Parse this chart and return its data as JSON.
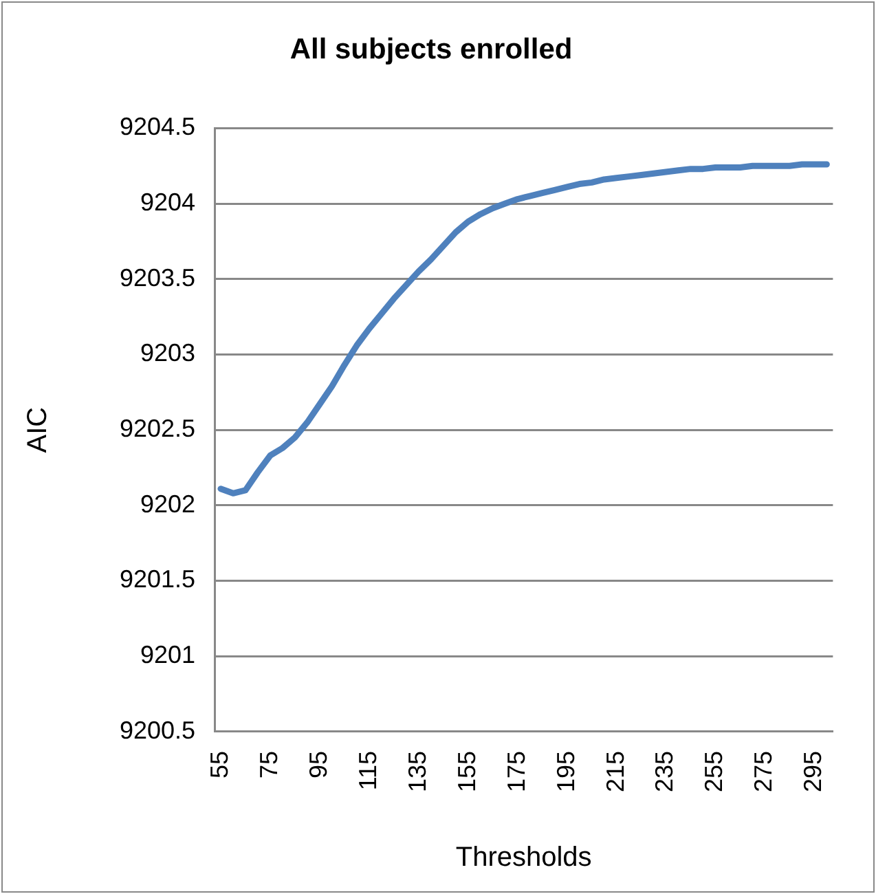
{
  "chart_data": {
    "type": "line",
    "title": "All subjects enrolled",
    "xlabel": "Thresholds",
    "ylabel": "AIC",
    "categories": [
      "55",
      null,
      null,
      null,
      "75",
      null,
      null,
      null,
      "95",
      null,
      null,
      null,
      "115",
      null,
      null,
      null,
      "135",
      null,
      null,
      null,
      "155",
      null,
      null,
      null,
      "175",
      null,
      null,
      null,
      "195",
      null,
      null,
      null,
      "215",
      null,
      null,
      null,
      "235",
      null,
      null,
      null,
      "255",
      null,
      null,
      null,
      "275",
      null,
      null,
      null,
      "295",
      null
    ],
    "series": [
      {
        "color": "#4f81bd",
        "values": [
          9202.11,
          9202.08,
          9202.1,
          9202.22,
          9202.33,
          9202.38,
          9202.45,
          9202.55,
          9202.67,
          9202.79,
          9202.93,
          9203.06,
          9203.17,
          9203.27,
          9203.37,
          9203.46,
          9203.55,
          9203.63,
          9203.72,
          9203.81,
          9203.88,
          9203.93,
          9203.97,
          9204.0,
          9204.03,
          9204.05,
          9204.07,
          9204.09,
          9204.11,
          9204.13,
          9204.14,
          9204.16,
          9204.17,
          9204.18,
          9204.19,
          9204.2,
          9204.21,
          9204.22,
          9204.23,
          9204.23,
          9204.24,
          9204.24,
          9204.24,
          9204.25,
          9204.25,
          9204.25,
          9204.25,
          9204.26,
          9204.26,
          9204.26
        ]
      }
    ],
    "ylim": [
      9200.5,
      9204.5
    ],
    "yticks": [
      9200.5,
      9201,
      9201.5,
      9202,
      9202.5,
      9203,
      9203.5,
      9204,
      9204.5
    ],
    "grid": "y",
    "legend": false,
    "marker": "none",
    "line_style": "solid"
  }
}
